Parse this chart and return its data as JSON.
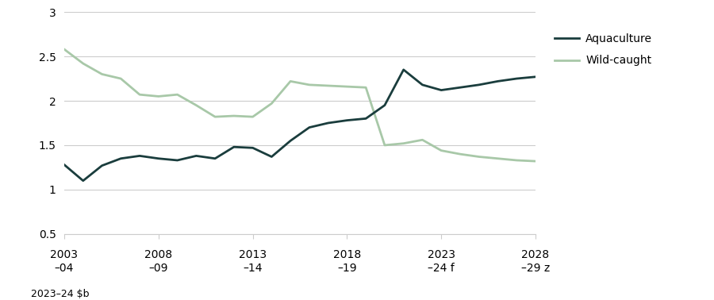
{
  "aquaculture": {
    "x": [
      2003,
      2004,
      2005,
      2006,
      2007,
      2008,
      2009,
      2010,
      2011,
      2012,
      2013,
      2014,
      2015,
      2016,
      2017,
      2018,
      2019,
      2020,
      2021,
      2022,
      2023,
      2024,
      2025,
      2026,
      2027,
      2028
    ],
    "y": [
      1.28,
      1.1,
      1.27,
      1.35,
      1.38,
      1.35,
      1.33,
      1.38,
      1.35,
      1.48,
      1.47,
      1.37,
      1.55,
      1.7,
      1.75,
      1.78,
      1.8,
      1.95,
      2.35,
      2.18,
      2.12,
      2.15,
      2.18,
      2.22,
      2.25,
      2.27
    ]
  },
  "wild_caught": {
    "x": [
      2003,
      2004,
      2005,
      2006,
      2007,
      2008,
      2009,
      2010,
      2011,
      2012,
      2013,
      2014,
      2015,
      2016,
      2017,
      2018,
      2019,
      2020,
      2021,
      2022,
      2023,
      2024,
      2025,
      2026,
      2027,
      2028
    ],
    "y": [
      2.58,
      2.42,
      2.3,
      2.25,
      2.07,
      2.05,
      2.07,
      1.95,
      1.82,
      1.83,
      1.82,
      1.97,
      2.22,
      2.18,
      2.17,
      2.16,
      2.15,
      1.5,
      1.52,
      1.56,
      1.44,
      1.4,
      1.37,
      1.35,
      1.33,
      1.32
    ]
  },
  "aquaculture_color": "#1a3d3d",
  "wild_caught_color": "#a8c8a8",
  "background_color": "#ffffff",
  "grid_color": "#cccccc",
  "ylim": [
    0.5,
    3.0
  ],
  "yticks": [
    0.5,
    1.0,
    1.5,
    2.0,
    2.5,
    3.0
  ],
  "xticks": [
    2003,
    2008,
    2013,
    2018,
    2023,
    2028
  ],
  "xtick_labels_top": [
    "2003",
    "2008",
    "2013",
    "2018",
    "2023",
    "2028"
  ],
  "xtick_labels_bottom": [
    "–04",
    "–09",
    "–14",
    "–19",
    "–24 f",
    "–29 z"
  ],
  "unit_label": "2023–24 $b",
  "legend_labels": [
    "Aquaculture",
    "Wild-caught"
  ],
  "line_width": 2.0,
  "font_size": 10
}
